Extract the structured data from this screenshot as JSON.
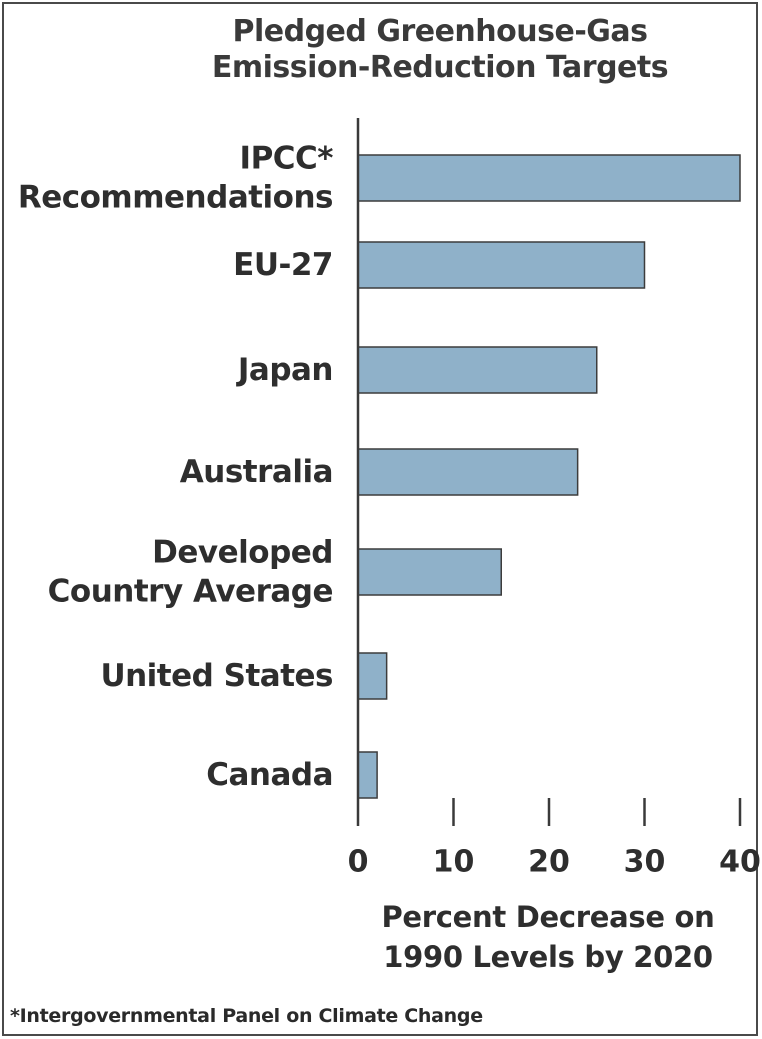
{
  "chart_data": {
    "type": "bar",
    "orientation": "horizontal",
    "title_lines": [
      "Pledged Greenhouse-Gas",
      "Emission-Reduction Targets"
    ],
    "categories": [
      [
        "IPCC*",
        "Recommendations"
      ],
      [
        "EU-27"
      ],
      [
        "Japan"
      ],
      [
        "Australia"
      ],
      [
        "Developed",
        "Country Average"
      ],
      [
        "United States"
      ],
      [
        "Canada"
      ]
    ],
    "values": [
      40,
      30,
      25,
      23,
      15,
      3,
      2
    ],
    "xlabel_lines": [
      "Percent Decrease on",
      "1990 Levels by 2020"
    ],
    "xticks": [
      0,
      10,
      20,
      30,
      40
    ],
    "xlim": [
      0,
      40
    ],
    "grid": false,
    "legend": "none",
    "bar_color": "#8fb1c9",
    "bar_edge_color": "#3c3c3c",
    "footnote": "*Intergovernmental Panel on Climate Change"
  }
}
